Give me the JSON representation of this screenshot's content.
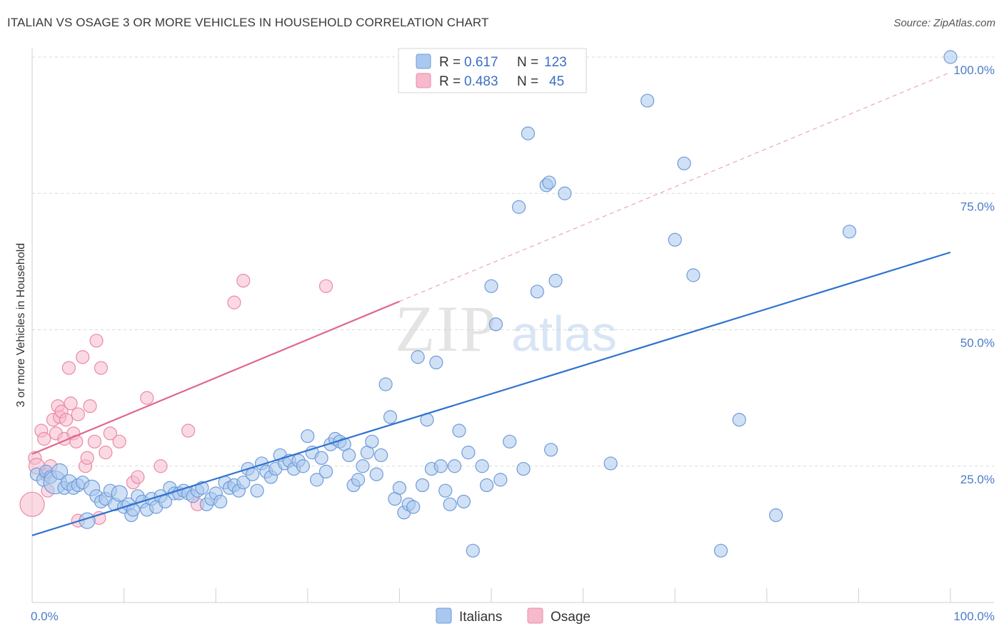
{
  "title": "ITALIAN VS OSAGE 3 OR MORE VEHICLES IN HOUSEHOLD CORRELATION CHART",
  "source": "Source: ZipAtlas.com",
  "watermark": {
    "zip": "ZIP",
    "atlas": "atlas"
  },
  "colors": {
    "italians_fill": "#a9c8ef",
    "italians_stroke": "#6f9bd8",
    "italians_line": "#2f73cf",
    "osage_fill": "#f7b9cc",
    "osage_stroke": "#e98aa8",
    "osage_line": "#e0668f",
    "tick": "#4a7cc7",
    "grid": "#d9d9d9"
  },
  "legend": {
    "rows": [
      {
        "r_label": "R =",
        "r_value": "0.617",
        "n_label": "N =",
        "n_value": "123"
      },
      {
        "r_label": "R =",
        "r_value": "0.483",
        "n_label": "N =",
        "n_value": "45"
      }
    ]
  },
  "chart_data": {
    "type": "scatter",
    "xlabel": "",
    "ylabel": "3 or more Vehicles in Household",
    "xlim": [
      0,
      100
    ],
    "ylim": [
      0,
      100
    ],
    "x_tick_labels": [
      "0.0%",
      "100.0%"
    ],
    "y_tick_labels": [
      "25.0%",
      "50.0%",
      "75.0%",
      "100.0%"
    ],
    "y_tick_values": [
      25,
      50,
      75,
      100
    ],
    "grid": "horizontal dashed",
    "legend_position": "top-center",
    "series": [
      {
        "name": "Italians",
        "trend": {
          "x": [
            0,
            100
          ],
          "y": [
            12.3,
            64.2
          ]
        },
        "points": [
          [
            0.5,
            23.5,
            9
          ],
          [
            1.2,
            22.5,
            9
          ],
          [
            1.5,
            24,
            9
          ],
          [
            2,
            23,
            9
          ],
          [
            2.5,
            22,
            16
          ],
          [
            3,
            24,
            11
          ],
          [
            3.5,
            21,
            9
          ],
          [
            4,
            22,
            11
          ],
          [
            4.5,
            21,
            9
          ],
          [
            5,
            21.5,
            9
          ],
          [
            5.5,
            22,
            9
          ],
          [
            6,
            15,
            11
          ],
          [
            6.5,
            21,
            11
          ],
          [
            7,
            19.5,
            9
          ],
          [
            7.5,
            18.5,
            9
          ],
          [
            8,
            19,
            9
          ],
          [
            8.5,
            20.5,
            9
          ],
          [
            9,
            18,
            9
          ],
          [
            9.5,
            20,
            11
          ],
          [
            10,
            17.5,
            9
          ],
          [
            10.5,
            18,
            9
          ],
          [
            10.8,
            16,
            9
          ],
          [
            11,
            17,
            9
          ],
          [
            11.5,
            19.5,
            9
          ],
          [
            12,
            18.5,
            9
          ],
          [
            12.5,
            17,
            9
          ],
          [
            13,
            19,
            9
          ],
          [
            13.5,
            17.5,
            9
          ],
          [
            14,
            19.5,
            9
          ],
          [
            14.5,
            18.5,
            9
          ],
          [
            15,
            21,
            9
          ],
          [
            15.5,
            20,
            9
          ],
          [
            16,
            20,
            9
          ],
          [
            16.5,
            20.5,
            9
          ],
          [
            17,
            20,
            9
          ],
          [
            17.5,
            19.5,
            9
          ],
          [
            18,
            20.5,
            9
          ],
          [
            18.5,
            21,
            9
          ],
          [
            19,
            18,
            9
          ],
          [
            19.5,
            19,
            9
          ],
          [
            20,
            20,
            9
          ],
          [
            20.5,
            18.5,
            9
          ],
          [
            21,
            22,
            9
          ],
          [
            21.5,
            21,
            9
          ],
          [
            22,
            21.5,
            9
          ],
          [
            22.5,
            20.5,
            9
          ],
          [
            23,
            22,
            9
          ],
          [
            23.5,
            24.5,
            9
          ],
          [
            24,
            23.5,
            9
          ],
          [
            24.5,
            20.5,
            9
          ],
          [
            25,
            25.5,
            9
          ],
          [
            25.5,
            24,
            9
          ],
          [
            26,
            23,
            9
          ],
          [
            26.5,
            24.5,
            9
          ],
          [
            27,
            27,
            9
          ],
          [
            27.5,
            25.5,
            9
          ],
          [
            28,
            26,
            9
          ],
          [
            28.5,
            24.5,
            9
          ],
          [
            29,
            26,
            9
          ],
          [
            29.5,
            25,
            9
          ],
          [
            30,
            30.5,
            9
          ],
          [
            30.5,
            27.5,
            9
          ],
          [
            31,
            22.5,
            9
          ],
          [
            31.5,
            26.5,
            9
          ],
          [
            32,
            24,
            9
          ],
          [
            32.5,
            29,
            9
          ],
          [
            33,
            30,
            9
          ],
          [
            33.5,
            29.5,
            9
          ],
          [
            34,
            29,
            9
          ],
          [
            34.5,
            27,
            9
          ],
          [
            35,
            21.5,
            9
          ],
          [
            35.5,
            22.5,
            9
          ],
          [
            36,
            25,
            9
          ],
          [
            36.5,
            27.5,
            9
          ],
          [
            37,
            29.5,
            9
          ],
          [
            37.5,
            23.5,
            9
          ],
          [
            38,
            27,
            9
          ],
          [
            38.5,
            40,
            9
          ],
          [
            39,
            34,
            9
          ],
          [
            39.5,
            19,
            9
          ],
          [
            40,
            21,
            9
          ],
          [
            40.5,
            16.5,
            9
          ],
          [
            41,
            18,
            9
          ],
          [
            41.5,
            17.5,
            9
          ],
          [
            42,
            45,
            9
          ],
          [
            42.5,
            21.5,
            9
          ],
          [
            43,
            33.5,
            9
          ],
          [
            43.5,
            24.5,
            9
          ],
          [
            44,
            44,
            9
          ],
          [
            44.5,
            25,
            9
          ],
          [
            45,
            20.5,
            9
          ],
          [
            45.5,
            18,
            9
          ],
          [
            46,
            25,
            9
          ],
          [
            46.5,
            31.5,
            9
          ],
          [
            47,
            18.5,
            9
          ],
          [
            47.5,
            27.5,
            9
          ],
          [
            48,
            9.5,
            9
          ],
          [
            49,
            25,
            9
          ],
          [
            49.5,
            21.5,
            9
          ],
          [
            50,
            58,
            9
          ],
          [
            50.5,
            51,
            9
          ],
          [
            51,
            22.5,
            9
          ],
          [
            52,
            29.5,
            9
          ],
          [
            53,
            72.5,
            9
          ],
          [
            53.5,
            24.5,
            9
          ],
          [
            54,
            86,
            9
          ],
          [
            55,
            57,
            9
          ],
          [
            56,
            76.5,
            9
          ],
          [
            56.3,
            77,
            9
          ],
          [
            56.5,
            28,
            9
          ],
          [
            57,
            59,
            9
          ],
          [
            58,
            75,
            9
          ],
          [
            63,
            25.5,
            9
          ],
          [
            67,
            92,
            9
          ],
          [
            70,
            66.5,
            9
          ],
          [
            71,
            80.5,
            9
          ],
          [
            72,
            60,
            9
          ],
          [
            75,
            9.5,
            9
          ],
          [
            77,
            33.5,
            9
          ],
          [
            81,
            16,
            9
          ],
          [
            89,
            68,
            9
          ],
          [
            100,
            100,
            9
          ]
        ]
      },
      {
        "name": "Osage",
        "trend": {
          "x": [
            0,
            40
          ],
          "y": [
            27.2,
            55.2
          ]
        },
        "dashed": {
          "x": [
            40,
            100
          ],
          "y": [
            55.2,
            97.2
          ]
        },
        "points": [
          [
            0,
            18,
            17
          ],
          [
            0.3,
            26.5,
            9
          ],
          [
            0.5,
            25,
            11
          ],
          [
            1,
            31.5,
            9
          ],
          [
            1.3,
            30,
            9
          ],
          [
            1.5,
            23.5,
            9
          ],
          [
            1.7,
            20.5,
            9
          ],
          [
            2,
            25,
            9
          ],
          [
            2.3,
            33.5,
            9
          ],
          [
            2.6,
            31,
            9
          ],
          [
            2.8,
            36,
            9
          ],
          [
            3,
            34,
            9
          ],
          [
            3.2,
            35,
            9
          ],
          [
            3.5,
            30,
            9
          ],
          [
            3.7,
            33.5,
            9
          ],
          [
            4,
            43,
            9
          ],
          [
            4.2,
            36.5,
            9
          ],
          [
            4.5,
            31,
            9
          ],
          [
            4.8,
            29.5,
            9
          ],
          [
            5,
            34.5,
            9
          ],
          [
            5,
            15,
            9
          ],
          [
            5.5,
            45,
            9
          ],
          [
            5.8,
            25,
            9
          ],
          [
            6,
            26.5,
            9
          ],
          [
            6.3,
            36,
            9
          ],
          [
            6.8,
            29.5,
            9
          ],
          [
            7,
            48,
            9
          ],
          [
            7.3,
            15.5,
            9
          ],
          [
            7.5,
            43,
            9
          ],
          [
            8,
            27.5,
            9
          ],
          [
            8.5,
            31,
            9
          ],
          [
            9.5,
            29.5,
            9
          ],
          [
            11,
            22,
            9
          ],
          [
            11.5,
            23,
            9
          ],
          [
            12.5,
            37.5,
            9
          ],
          [
            14,
            25,
            9
          ],
          [
            17,
            31.5,
            9
          ],
          [
            18,
            18,
            9
          ],
          [
            22,
            55,
            9
          ],
          [
            23,
            59,
            9
          ],
          [
            32,
            58,
            9
          ]
        ]
      }
    ]
  }
}
